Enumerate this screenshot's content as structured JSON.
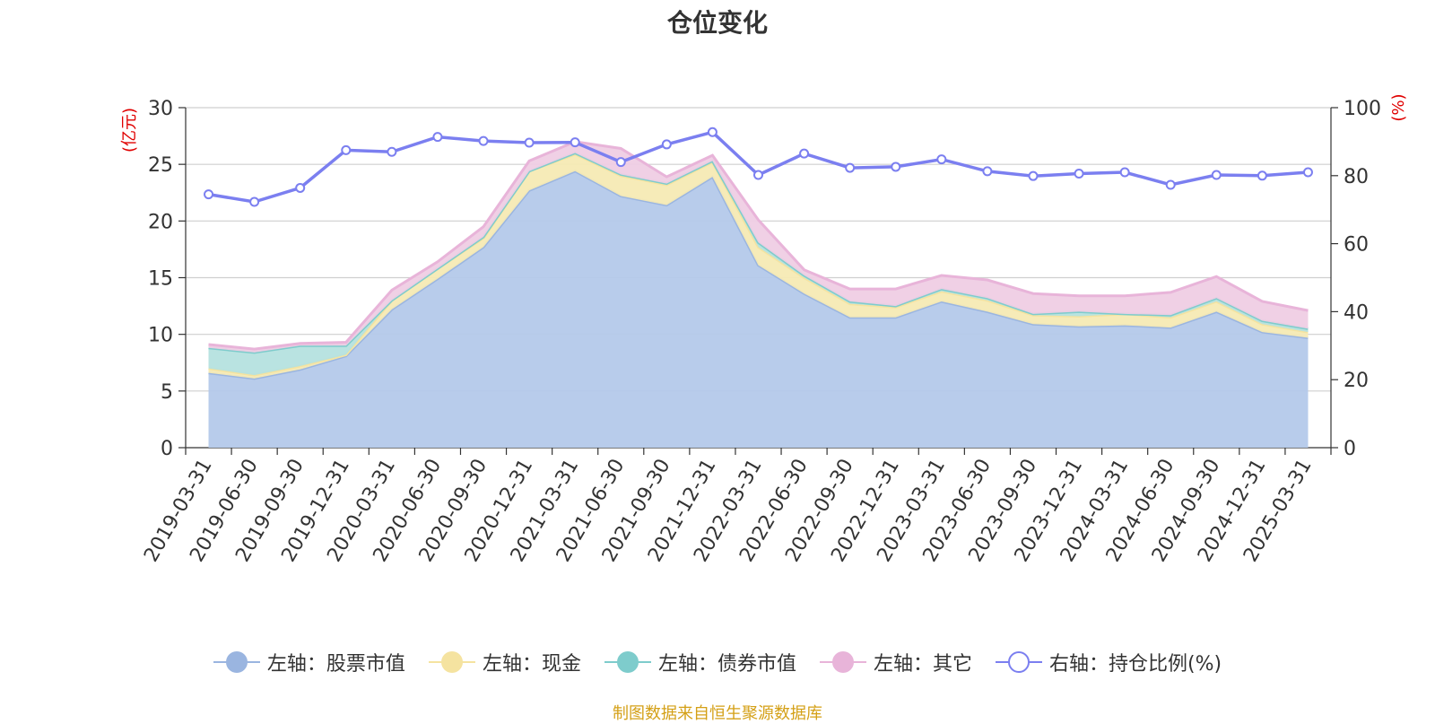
{
  "chart_data": {
    "type": "area",
    "title": "仓位变化",
    "categories": [
      "2019-03-31",
      "2019-06-30",
      "2019-09-30",
      "2019-12-31",
      "2020-03-31",
      "2020-06-30",
      "2020-09-30",
      "2020-12-31",
      "2021-03-31",
      "2021-06-30",
      "2021-09-30",
      "2021-12-31",
      "2022-03-31",
      "2022-06-30",
      "2022-09-30",
      "2022-12-31",
      "2023-03-31",
      "2023-06-30",
      "2023-09-30",
      "2023-12-31",
      "2024-03-31",
      "2024-06-30",
      "2024-09-30",
      "2024-12-31",
      "2025-03-31"
    ],
    "left_axis": {
      "unit_label": "(亿元)",
      "ylim": [
        0,
        30
      ],
      "ticks": [
        "0",
        "5",
        "10",
        "15",
        "20",
        "25",
        "30"
      ]
    },
    "right_axis": {
      "unit_label": "(%)",
      "ylim": [
        0,
        100
      ],
      "ticks": [
        "0",
        "20",
        "40",
        "60",
        "80",
        "100"
      ]
    },
    "stacked": true,
    "grid": true,
    "legend_position": "bottom",
    "series": [
      {
        "name": "左轴：股票市值",
        "axis": "left",
        "color": "#9ab5e0",
        "fill": "#b4c9ea",
        "values": [
          6.6,
          6.1,
          6.9,
          8.1,
          12.2,
          14.9,
          17.7,
          22.7,
          24.4,
          22.2,
          21.4,
          23.9,
          16.1,
          13.6,
          11.5,
          11.5,
          12.9,
          12.0,
          10.9,
          10.7,
          10.8,
          10.6,
          12.0,
          10.2,
          9.7
        ]
      },
      {
        "name": "左轴：现金",
        "axis": "left",
        "color": "#f5e3a0",
        "fill": "#f6eab4",
        "values": [
          0.4,
          0.3,
          0.3,
          0.1,
          0.8,
          0.9,
          0.8,
          1.7,
          1.5,
          1.8,
          1.8,
          1.3,
          1.6,
          1.4,
          1.2,
          0.9,
          0.9,
          1.0,
          0.8,
          0.9,
          1.0,
          0.9,
          0.9,
          0.7,
          0.5
        ]
      },
      {
        "name": "左轴：债券市值",
        "axis": "left",
        "color": "#7ecccc",
        "fill": "#b5e1df",
        "values": [
          1.8,
          2.0,
          1.8,
          0.8,
          0.0,
          0.0,
          0.1,
          0.0,
          0.1,
          0.1,
          0.1,
          0.1,
          0.4,
          0.2,
          0.2,
          0.1,
          0.2,
          0.2,
          0.1,
          0.4,
          0.0,
          0.2,
          0.3,
          0.3,
          0.3
        ]
      },
      {
        "name": "左轴：其它",
        "axis": "left",
        "color": "#e8b4d9",
        "fill": "#efcde4",
        "values": [
          0.3,
          0.3,
          0.2,
          0.3,
          0.9,
          0.6,
          0.9,
          0.9,
          1.0,
          2.3,
          0.6,
          0.5,
          2.0,
          0.5,
          1.1,
          1.5,
          1.2,
          1.6,
          1.8,
          1.4,
          1.6,
          2.0,
          1.9,
          1.7,
          1.6
        ]
      },
      {
        "name": "右轴：持仓比例(%)",
        "axis": "right",
        "color": "#7b7ff0",
        "values": [
          74.5,
          72.3,
          76.4,
          87.5,
          87.0,
          91.4,
          90.2,
          89.7,
          89.8,
          84.0,
          89.2,
          92.8,
          80.2,
          86.5,
          82.3,
          82.6,
          84.8,
          81.3,
          79.9,
          80.6,
          81.0,
          77.3,
          80.2,
          80.0,
          81.0
        ]
      }
    ],
    "source_note": "制图数据来自恒生聚源数据库"
  }
}
